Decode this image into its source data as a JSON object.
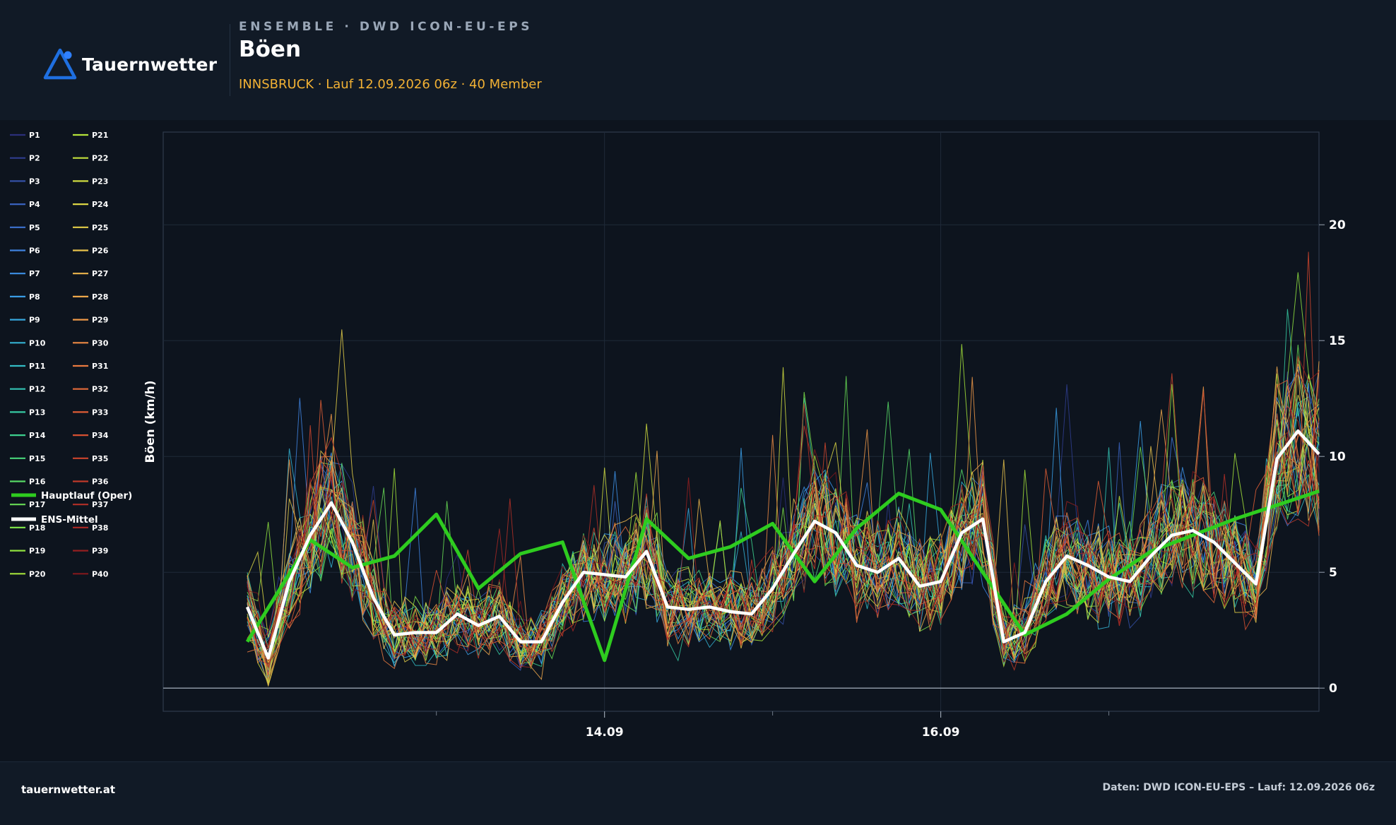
{
  "header": {
    "brand": "Tauernwetter",
    "eyebrow": "ENSEMBLE · DWD ICON-EU-EPS",
    "title": "Böen",
    "subtitle": "INNSBRUCK · Lauf 12.09.2026 06z · 40 Member"
  },
  "footer": {
    "site": "tauernwetter.at",
    "source": "Daten: DWD ICON-EU-EPS – Lauf: 12.09.2026 06z"
  },
  "colors": {
    "background": "#0d141e",
    "panel": "#111a26",
    "accent": "#f2b134",
    "oper": "#2ecc1f",
    "mean": "#ffffff",
    "logo": "#1f6fe0"
  },
  "chart_data": {
    "type": "line",
    "ylabel": "Böen (km/h)",
    "ylim": [
      -1,
      24
    ],
    "yticks": [
      0,
      5,
      10,
      15,
      20
    ],
    "x_hours_range": [
      -21,
      144
    ],
    "xticks": [
      {
        "hours": 42,
        "label": "14.09"
      },
      {
        "hours": 90,
        "label": "16.09"
      }
    ],
    "xminor_hours": [
      18,
      66,
      114
    ],
    "grid": true,
    "legend": "left",
    "x_hours": [
      -9,
      -6,
      -3,
      0,
      3,
      6,
      9,
      12,
      15,
      18,
      21,
      24,
      27,
      30,
      33,
      36,
      39,
      42,
      45,
      48,
      51,
      54,
      57,
      60,
      63,
      66,
      69,
      72,
      75,
      78,
      81,
      84,
      87,
      90,
      93,
      96,
      99,
      102,
      105,
      108,
      111,
      114,
      117,
      120,
      123,
      126,
      129,
      132,
      135,
      138,
      141,
      144
    ],
    "ens_mean": [
      3.5,
      1.3,
      4.6,
      6.6,
      8.0,
      6.3,
      3.9,
      2.3,
      2.4,
      2.4,
      3.2,
      2.7,
      3.1,
      2.0,
      2.0,
      3.7,
      5.0,
      4.9,
      4.8,
      5.9,
      3.5,
      3.4,
      3.5,
      3.3,
      3.2,
      4.3,
      5.8,
      7.2,
      6.7,
      5.3,
      5.0,
      5.6,
      4.4,
      4.6,
      6.7,
      7.3,
      2.0,
      2.4,
      4.6,
      5.7,
      5.3,
      4.8,
      4.6,
      5.7,
      6.6,
      6.8,
      6.3,
      5.4,
      4.5,
      9.9,
      11.1,
      10.1
    ],
    "oper": {
      "x_hours": [
        -9,
        0,
        6,
        12,
        18,
        24,
        30,
        36,
        42,
        48,
        54,
        60,
        66,
        72,
        78,
        84,
        90,
        96,
        102,
        108,
        114,
        120,
        126,
        132,
        138,
        144
      ],
      "values": [
        2.0,
        6.4,
        5.2,
        5.7,
        7.5,
        4.3,
        5.8,
        6.3,
        1.2,
        7.3,
        5.6,
        6.1,
        7.1,
        4.6,
        6.9,
        8.4,
        7.7,
        5.0,
        2.3,
        3.2,
        4.7,
        5.9,
        6.6,
        7.3,
        7.9,
        8.5
      ]
    },
    "series": [
      {
        "name": "P1",
        "color": "#2b2f7a"
      },
      {
        "name": "P2",
        "color": "#2f3d8f"
      },
      {
        "name": "P3",
        "color": "#3450a6"
      },
      {
        "name": "P4",
        "color": "#3962bd"
      },
      {
        "name": "P5",
        "color": "#3d72d0"
      },
      {
        "name": "P6",
        "color": "#3f82df"
      },
      {
        "name": "P7",
        "color": "#3d90e6"
      },
      {
        "name": "P8",
        "color": "#3a9de6"
      },
      {
        "name": "P9",
        "color": "#37a8de"
      },
      {
        "name": "P10",
        "color": "#34b2d2"
      },
      {
        "name": "P11",
        "color": "#33bbc4"
      },
      {
        "name": "P12",
        "color": "#33c3b4"
      },
      {
        "name": "P13",
        "color": "#36caa2"
      },
      {
        "name": "P14",
        "color": "#3dd08e"
      },
      {
        "name": "P15",
        "color": "#48d57a"
      },
      {
        "name": "P16",
        "color": "#57d966"
      },
      {
        "name": "P17",
        "color": "#68dc55"
      },
      {
        "name": "P18",
        "color": "#7bde48"
      },
      {
        "name": "P19",
        "color": "#8fe03f"
      },
      {
        "name": "P20",
        "color": "#a3e13a"
      },
      {
        "name": "P21",
        "color": "#b4e23a"
      },
      {
        "name": "P22",
        "color": "#c3e03c"
      },
      {
        "name": "P23",
        "color": "#d0dc40"
      },
      {
        "name": "P24",
        "color": "#dbd644"
      },
      {
        "name": "P25",
        "color": "#e3cd48"
      },
      {
        "name": "P26",
        "color": "#e8c24b"
      },
      {
        "name": "P27",
        "color": "#ecb54c"
      },
      {
        "name": "P28",
        "color": "#eea74b"
      },
      {
        "name": "P29",
        "color": "#ee9848"
      },
      {
        "name": "P30",
        "color": "#ec8944"
      },
      {
        "name": "P31",
        "color": "#e97a3f"
      },
      {
        "name": "P32",
        "color": "#e46b3a"
      },
      {
        "name": "P33",
        "color": "#de5d35"
      },
      {
        "name": "P34",
        "color": "#d65031"
      },
      {
        "name": "P35",
        "color": "#cc442d"
      },
      {
        "name": "P36",
        "color": "#c0392a"
      },
      {
        "name": "P37",
        "color": "#b32f27"
      },
      {
        "name": "P38",
        "color": "#a42724"
      },
      {
        "name": "P39",
        "color": "#941f20"
      },
      {
        "name": "P40",
        "color": "#82181c"
      }
    ],
    "legend_extra": [
      {
        "name": "Hauptlauf (Oper)",
        "color": "#2ecc1f"
      },
      {
        "name": "ENS-Mittel",
        "color": "#ffffff"
      }
    ]
  }
}
